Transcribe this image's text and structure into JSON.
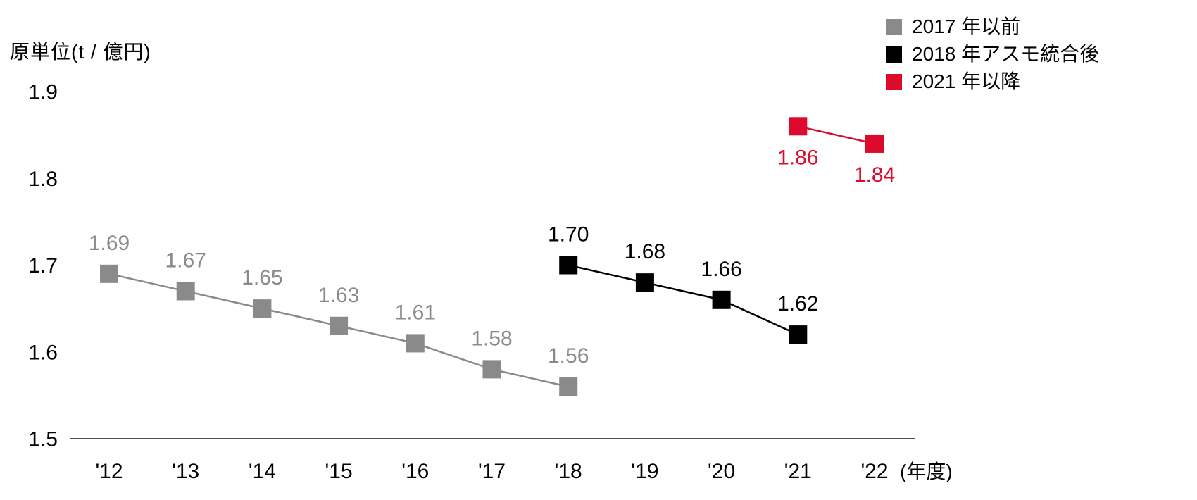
{
  "axis": {
    "y_label": "原単位(t / 億円)",
    "x_unit_suffix": "(年度)",
    "y_ticks": [
      1.9,
      1.8,
      1.7,
      1.6,
      1.5
    ],
    "x_ticks": [
      "'12",
      "'13",
      "'14",
      "'15",
      "'16",
      "'17",
      "'18",
      "'19",
      "'20",
      "'21",
      "'22"
    ]
  },
  "legend": [
    {
      "label": "2017 年以前",
      "color": "#8A8A8A"
    },
    {
      "label": "2018 年アスモ統合後",
      "color": "#000000"
    },
    {
      "label": "2021 年以降",
      "color": "#DC0A2D"
    }
  ],
  "colors": {
    "gray_series": "#8A8A8A",
    "black_series": "#000000",
    "red_series": "#DC0A2D",
    "axis_line": "#4d4d4d",
    "tick_text": "#000000"
  },
  "chart_data": {
    "type": "line",
    "title": "",
    "ylabel": "原単位(t / 億円)",
    "xlabel": "(年度)",
    "ylim": [
      1.5,
      1.9
    ],
    "grid": false,
    "legend_position": "top-right",
    "x_categories": [
      "'12",
      "'13",
      "'14",
      "'15",
      "'16",
      "'17",
      "'18",
      "'19",
      "'20",
      "'21",
      "'22"
    ],
    "series": [
      {
        "name": "2017 年以前",
        "color": "#8A8A8A",
        "marker": "square",
        "label_position": "above",
        "points": [
          {
            "x": "'12",
            "y": 1.69
          },
          {
            "x": "'13",
            "y": 1.67
          },
          {
            "x": "'14",
            "y": 1.65
          },
          {
            "x": "'15",
            "y": 1.63
          },
          {
            "x": "'16",
            "y": 1.61
          },
          {
            "x": "'17",
            "y": 1.58
          },
          {
            "x": "'18",
            "y": 1.56
          }
        ]
      },
      {
        "name": "2018 年アスモ統合後",
        "color": "#000000",
        "marker": "square",
        "label_position": "above",
        "points": [
          {
            "x": "'18",
            "y": 1.7
          },
          {
            "x": "'19",
            "y": 1.68
          },
          {
            "x": "'20",
            "y": 1.66
          },
          {
            "x": "'21",
            "y": 1.62
          }
        ]
      },
      {
        "name": "2021 年以降",
        "color": "#DC0A2D",
        "marker": "square",
        "label_position": "below",
        "points": [
          {
            "x": "'21",
            "y": 1.86
          },
          {
            "x": "'22",
            "y": 1.84
          }
        ]
      }
    ]
  }
}
